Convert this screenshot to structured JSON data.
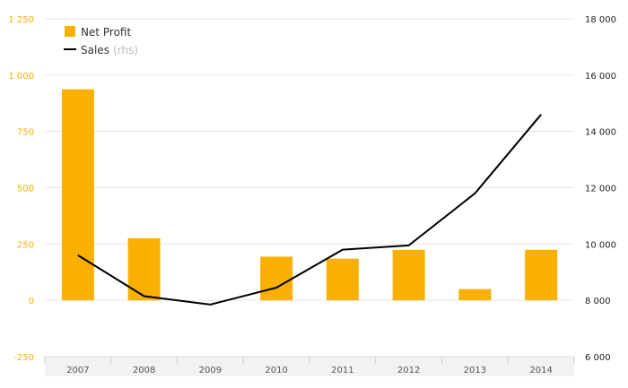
{
  "chart_data": {
    "type": "bar+line",
    "categories": [
      "2007",
      "2008",
      "2009",
      "2010",
      "2011",
      "2012",
      "2013",
      "2014"
    ],
    "series": [
      {
        "name": "Net Profit",
        "type": "bar",
        "axis": "left",
        "values": [
          937,
          276,
          0,
          194,
          185,
          224,
          50,
          224
        ]
      },
      {
        "name": "Sales",
        "name_suffix": "(rhs)",
        "type": "line",
        "axis": "right",
        "values": [
          9600,
          8150,
          7850,
          8450,
          9800,
          9950,
          11800,
          14600
        ]
      }
    ],
    "y_left": {
      "range": [
        -250,
        1250
      ],
      "ticks": [
        -250,
        0,
        250,
        500,
        750,
        1000,
        1250
      ],
      "tick_labels": [
        "-250",
        "0",
        "250",
        "500",
        "750",
        "1 000",
        "1 250"
      ]
    },
    "y_right": {
      "range": [
        6000,
        18000
      ],
      "ticks": [
        6000,
        8000,
        10000,
        12000,
        14000,
        16000,
        18000
      ],
      "tick_labels": [
        "6 000",
        "8 000",
        "10 000",
        "12 000",
        "14 000",
        "16 000",
        "18 000"
      ]
    },
    "legend_position": "top-left",
    "grid": "horizontal",
    "colors": {
      "bar": "#F9B000",
      "line": "#000000",
      "left_axis_text": "#F9B000",
      "grid": "#e6e6e6",
      "x_band": "#f2f2f2"
    }
  }
}
